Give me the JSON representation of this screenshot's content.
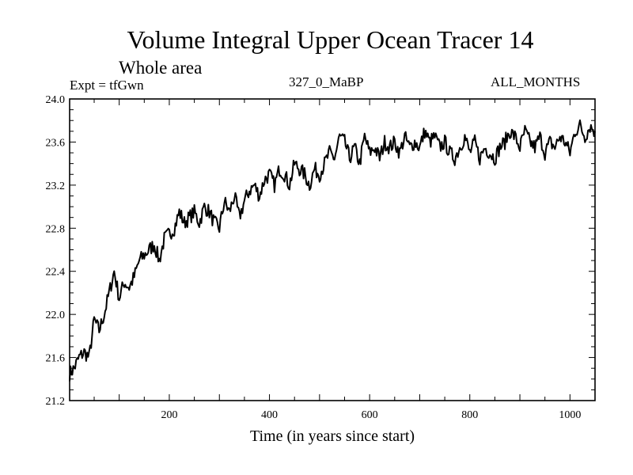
{
  "header": {
    "title": "Volume Integral Upper Ocean Tracer 14",
    "subtitle": "Whole area",
    "experiment": "Expt = tfGwn",
    "period": "327_0_MaBP",
    "months": "ALL_MONTHS"
  },
  "chart_data": {
    "type": "line",
    "title": "Volume Integral Upper Ocean Tracer 14",
    "xlabel": "Time (in years since start)",
    "ylabel": "",
    "xlim": [
      1,
      1050
    ],
    "ylim": [
      21.2,
      24.0
    ],
    "x_ticks": [
      200,
      400,
      600,
      800,
      1000
    ],
    "y_ticks": [
      "21.2",
      "21.6",
      "22.0",
      "22.4",
      "22.8",
      "23.2",
      "23.6",
      "24.0"
    ],
    "line_color": "#000000",
    "series": [
      {
        "name": "tfGwn",
        "x": [
          1,
          10,
          20,
          30,
          40,
          50,
          60,
          70,
          80,
          90,
          100,
          110,
          120,
          130,
          140,
          150,
          160,
          170,
          180,
          190,
          200,
          210,
          220,
          230,
          240,
          250,
          260,
          270,
          280,
          290,
          300,
          310,
          320,
          330,
          340,
          350,
          360,
          370,
          380,
          390,
          400,
          410,
          420,
          430,
          440,
          450,
          460,
          470,
          480,
          490,
          500,
          510,
          520,
          530,
          540,
          550,
          560,
          570,
          580,
          590,
          600,
          610,
          620,
          630,
          640,
          650,
          660,
          670,
          680,
          690,
          700,
          710,
          720,
          730,
          740,
          750,
          760,
          770,
          780,
          790,
          800,
          810,
          820,
          830,
          840,
          850,
          860,
          870,
          880,
          890,
          900,
          910,
          920,
          930,
          940,
          950,
          960,
          970,
          980,
          990,
          1000,
          1010,
          1020,
          1030,
          1040,
          1050
        ],
        "values": [
          21.45,
          21.5,
          21.6,
          21.65,
          21.6,
          21.95,
          21.85,
          22.0,
          22.2,
          22.4,
          22.15,
          22.3,
          22.25,
          22.35,
          22.5,
          22.55,
          22.6,
          22.65,
          22.5,
          22.7,
          22.75,
          22.8,
          22.95,
          22.85,
          22.9,
          22.95,
          22.85,
          23.0,
          22.95,
          22.85,
          22.8,
          23.05,
          22.95,
          23.1,
          22.9,
          23.05,
          23.15,
          23.2,
          23.1,
          23.25,
          23.3,
          23.2,
          23.35,
          23.3,
          23.2,
          23.4,
          23.35,
          23.3,
          23.2,
          23.35,
          23.3,
          23.4,
          23.5,
          23.45,
          23.65,
          23.6,
          23.45,
          23.55,
          23.4,
          23.65,
          23.5,
          23.55,
          23.45,
          23.6,
          23.55,
          23.6,
          23.5,
          23.65,
          23.55,
          23.6,
          23.55,
          23.7,
          23.6,
          23.65,
          23.55,
          23.6,
          23.5,
          23.45,
          23.55,
          23.65,
          23.5,
          23.6,
          23.45,
          23.55,
          23.5,
          23.45,
          23.55,
          23.6,
          23.7,
          23.65,
          23.55,
          23.7,
          23.6,
          23.55,
          23.65,
          23.5,
          23.6,
          23.55,
          23.65,
          23.6,
          23.5,
          23.7,
          23.75,
          23.65,
          23.75,
          23.7
        ]
      }
    ]
  }
}
